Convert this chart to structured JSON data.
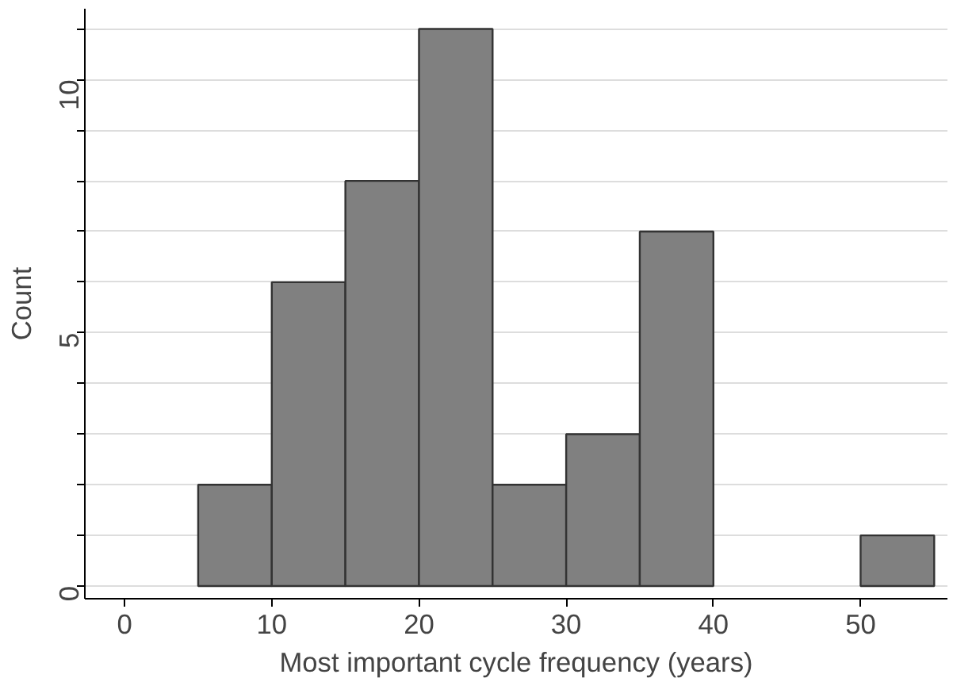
{
  "chart_data": {
    "type": "histogram",
    "xlabel": "Most important cycle frequency (years)",
    "ylabel": "Count",
    "bins": [
      5,
      10,
      15,
      20,
      25,
      30,
      35,
      40,
      45,
      50,
      55
    ],
    "values": [
      2,
      6,
      8,
      11,
      2,
      3,
      7,
      0,
      0,
      1
    ],
    "color": "#808080",
    "xlim": [
      -2.7,
      55.9
    ],
    "ylim": [
      -0.25,
      11.4
    ],
    "xticks": [
      0,
      10,
      20,
      30,
      40,
      50
    ],
    "yticks": [
      0,
      {
        "value": 1,
        "label": null
      },
      {
        "value": 2,
        "label": null
      },
      {
        "value": 3,
        "label": null
      },
      {
        "value": 4,
        "label": null
      },
      5,
      {
        "value": 6,
        "label": null
      },
      {
        "value": 7,
        "label": null
      },
      {
        "value": 8,
        "label": null
      },
      {
        "value": 9,
        "label": null
      },
      10,
      {
        "value": 11,
        "label": null
      }
    ],
    "grid": "y"
  }
}
